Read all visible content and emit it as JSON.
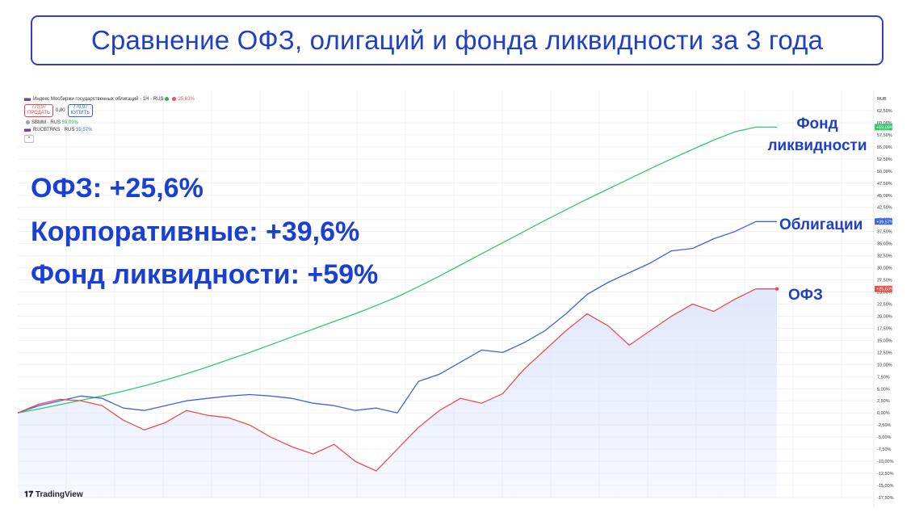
{
  "title": "Сравнение ОФЗ, олигаций и фонда ликвидности за 3 года",
  "stats": {
    "ofz": "ОФЗ: +25,6%",
    "corp": "Корпоративные: +39,6%",
    "fund": "Фонд ликвидности: +59%"
  },
  "labels": {
    "fund_line1": "Фонд",
    "fund_line2": "ликвидности",
    "bonds": "Облигации",
    "ofz": "ОФЗ"
  },
  "legend": {
    "main_series": "Индекс Мосбиржи государственных облигаций · 1Н · RUS",
    "main_value": "25,63%",
    "sell_price": "770,97",
    "sell_label": "ПРОДАТЬ",
    "spread": "0,00",
    "buy_price": "770,97",
    "buy_label": "КУПИТЬ",
    "sbmm": "SBMM · RUS",
    "sbmm_value": "59,09%",
    "rucbtrns": "RUCBTRNS · RUS",
    "rucbtrns_value": "39,57%"
  },
  "branding": "TradingView",
  "currency": "RUB",
  "colors": {
    "fund": "#33c86a",
    "bonds": "#3c64e0",
    "ofz": "#e85050",
    "ofz_fill": "#dfe6fb",
    "accent": "#1f3fc9"
  },
  "chart_data": {
    "type": "line",
    "yunit": "%",
    "ylim": [
      -17.5,
      65
    ],
    "yticks": [
      -17.5,
      -15,
      -12.5,
      -10,
      -7.5,
      -5,
      -2.5,
      0,
      2.5,
      5,
      7.5,
      10,
      12.5,
      15,
      17.5,
      20,
      22.5,
      25,
      27.5,
      30,
      32.5,
      35,
      37.5,
      40,
      42.5,
      45,
      47.5,
      50,
      52.5,
      55,
      57.5,
      60,
      62.5
    ],
    "ytick_labels": [
      "-17,50%",
      "-15,00%",
      "-12,50%",
      "-10,00%",
      "-7,50%",
      "-5,00%",
      "-2,50%",
      "0,00%",
      "2,50%",
      "5,00%",
      "7,50%",
      "10,00%",
      "12,50%",
      "15,00%",
      "17,50%",
      "20,00%",
      "22,50%",
      "25,00%",
      "27,50%",
      "30,00%",
      "32,50%",
      "35,00%",
      "37,50%",
      "40,00%",
      "42,50%",
      "45,00%",
      "47,50%",
      "50,00%",
      "52,50%",
      "55,00%",
      "57,50%",
      "60,00%",
      "62,50%"
    ],
    "x": [
      0,
      3,
      6,
      9,
      12,
      15,
      18,
      21,
      24,
      27,
      30,
      33,
      36,
      39,
      42,
      45,
      48,
      51,
      54,
      57,
      60,
      63,
      66,
      69,
      72,
      75,
      78,
      81,
      84,
      87,
      90,
      93,
      96,
      99,
      102,
      105,
      108
    ],
    "series": [
      {
        "name": "SBMM · RUS",
        "color": "#33c86a",
        "end_label": "+59,09%",
        "values": [
          0,
          0.8,
          1.7,
          2.6,
          3.5,
          4.5,
          5.6,
          6.8,
          8.1,
          9.5,
          11.0,
          12.5,
          14.1,
          15.7,
          17.3,
          18.9,
          20.5,
          22.2,
          24.0,
          26.1,
          28.3,
          30.6,
          32.9,
          35.2,
          37.5,
          39.8,
          42.0,
          44.2,
          46.3,
          48.4,
          50.5,
          52.5,
          54.5,
          56.4,
          58.1,
          59.09,
          59.09
        ]
      },
      {
        "name": "RUCBTRNS · RUS",
        "color": "#3c64e0",
        "end_label": "+39,57%",
        "values": [
          0,
          1.5,
          2.5,
          3.5,
          3.0,
          1.0,
          0.5,
          1.5,
          2.5,
          3.0,
          3.5,
          3.8,
          3.5,
          3.0,
          2.0,
          1.5,
          0.5,
          1.0,
          0.0,
          6.5,
          8.0,
          10.5,
          13.0,
          12.5,
          14.5,
          17.0,
          20.5,
          24.5,
          27.0,
          29.0,
          31.0,
          33.5,
          34.0,
          36.0,
          37.5,
          39.57,
          39.57
        ]
      },
      {
        "name": "Индекс Мосбиржи государственных облигаций · 1Н · RUS",
        "color": "#e85050",
        "end_label": "+25,63%",
        "values": [
          0,
          1.8,
          2.8,
          2.5,
          1.5,
          -1.5,
          -3.5,
          -2.0,
          0.5,
          -0.5,
          -1.0,
          -2.5,
          -5.0,
          -7.0,
          -8.5,
          -6.5,
          -10.0,
          -12.0,
          -7.5,
          -3.0,
          0.5,
          3.0,
          2.0,
          4.0,
          9.0,
          13.0,
          17.0,
          20.5,
          18.0,
          14.0,
          17.0,
          20.0,
          22.5,
          21.0,
          23.5,
          25.63,
          25.63
        ]
      }
    ]
  }
}
